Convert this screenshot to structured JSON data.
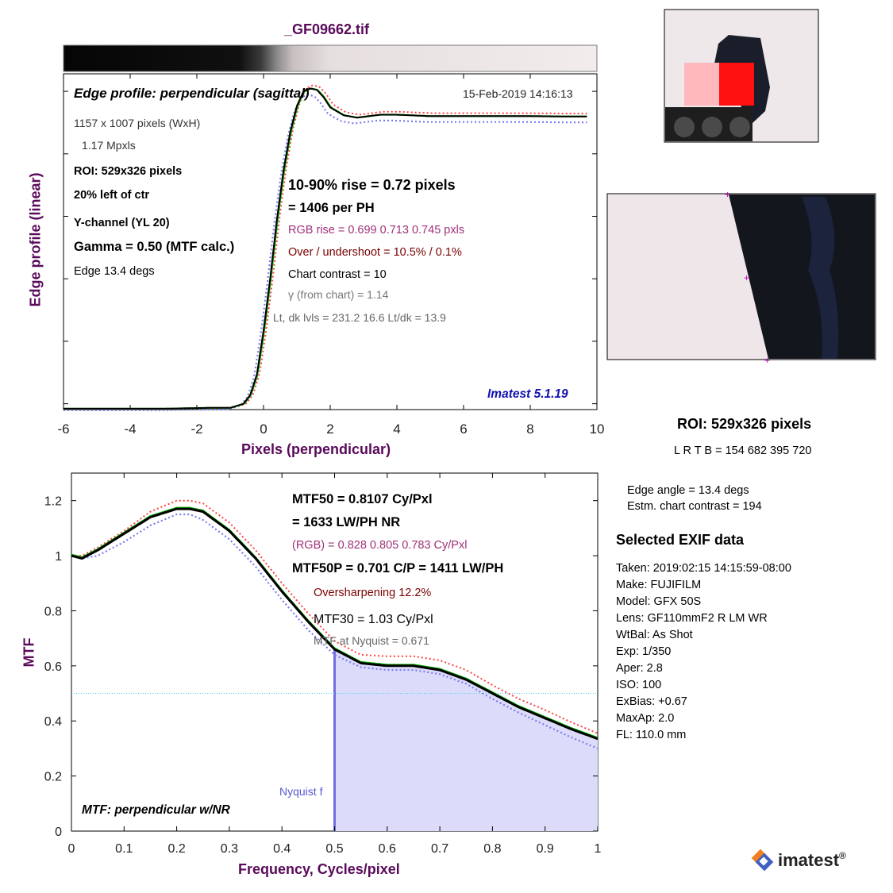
{
  "file_title": "_GF09662.tif",
  "edge_panel": {
    "title": "Edge profile: perpendicular (sagittal)",
    "timestamp": "15-Feb-2019 14:16:13",
    "info": {
      "size": "1157 x 1007 pixels (WxH)",
      "mpxls": "1.17 Mpxls",
      "roi": "ROI:  529x326 pixels",
      "location": "20% left of ctr",
      "channel": "Y-channel  (YL 20)",
      "gamma": "Gamma = 0.50 (MTF calc.)",
      "edge": "Edge   13.4 degs"
    },
    "stats": {
      "rise": "10-90% rise = 0.72 pixels",
      "per_ph": "=   1406 per PH",
      "rgb_rise": "RGB rise =  0.699   0.713   0.745 pxls",
      "overshoot": "Over / undershoot = 10.5% /  0.1%",
      "chart_contrast": "Chart contrast = 10",
      "gamma_from_chart": "γ (from chart) =  1.14",
      "levels": "Lt, dk lvls = 231.2  16.6  Lt/dk = 13.9"
    },
    "version": "Imatest 5.1.19",
    "xlabel": "Pixels (perpendicular)",
    "ylabel": "Edge profile (linear)"
  },
  "mtf_panel": {
    "mtf50": "MTF50 = 0.8107 Cy/Pxl",
    "lwph": "= 1633 LW/PH  NR",
    "rgb": "(RGB) = 0.828  0.805  0.783 Cy/Pxl",
    "mtf50p": "MTF50P = 0.701 C/P = 1411 LW/PH",
    "oversharpening": "Oversharpening 12.2%",
    "mtf30": "MTF30 = 1.03 Cy/Pxl",
    "nyquist_value": "MTF at Nyquist = 0.671",
    "nyquist_label": "Nyquist f",
    "panel_label": "MTF: perpendicular w/NR",
    "xlabel": "Frequency, Cycles/pixel",
    "ylabel": "MTF"
  },
  "roi_info": {
    "title": "ROI:  529x326 pixels",
    "lrtb": "L R  T B = 154 682  395 720",
    "edge_angle": "Edge angle = 13.4 degs",
    "chart_contrast": "Estm. chart contrast = 194"
  },
  "exif": {
    "title": "Selected EXIF data",
    "rows": [
      "Taken: 2019:02:15 14:15:59-08:00",
      "Make:  FUJIFILM",
      "Model:  GFX 50S",
      "Lens:   GF110mmF2 R LM WR",
      "WtBal: As Shot",
      "Exp:    1/350",
      "Aper:   2.8",
      "ISO:    100",
      "ExBias: +0.67",
      "MaxAp: 2.0",
      "FL:     110.0 mm"
    ]
  },
  "logo": {
    "text": "imatest",
    "mark": "®"
  },
  "colors": {
    "title_purple": "#5a0a5a",
    "magenta_text": "#a0307a",
    "darkred_text": "#7a0000",
    "version_blue": "#1010b0",
    "red_curve": "#ff4040",
    "blue_curve": "#7b7bf0",
    "green_curve": "#00b000",
    "nyquist_fill": "#dcdcfa"
  },
  "chart_data": [
    {
      "type": "line",
      "title": "Edge profile: perpendicular (sagittal)",
      "xlabel": "Pixels (perpendicular)",
      "ylabel": "Edge profile (linear)",
      "xlim": [
        -6,
        10
      ],
      "ylim": [
        0,
        1.15
      ],
      "xticks": [
        -6,
        -4,
        -2,
        0,
        2,
        4,
        6,
        8,
        10
      ],
      "grid": false,
      "series": [
        {
          "values_x": [
            -6,
            -3,
            -1.6,
            -1,
            -0.6,
            -0.4,
            -0.2,
            0,
            0.2,
            0.4,
            0.6,
            0.8,
            1,
            1.2,
            1.4,
            1.6,
            1.8,
            2,
            2.4,
            2.8,
            3.5,
            4,
            5,
            6,
            7,
            8,
            9,
            9.7
          ],
          "values_y": [
            0.003,
            0.003,
            0.006,
            0.006,
            0.02,
            0.05,
            0.12,
            0.27,
            0.45,
            0.65,
            0.82,
            0.95,
            1.04,
            1.09,
            1.1,
            1.095,
            1.07,
            1.035,
            1.008,
            1.0,
            1.01,
            1.01,
            1.005,
            1.005,
            1.005,
            1.005,
            1.004,
            1.004
          ]
        }
      ]
    },
    {
      "type": "line",
      "xlabel": "Frequency, Cycles/pixel",
      "ylabel": "MTF",
      "xlim": [
        0,
        1
      ],
      "ylim": [
        0,
        1.3
      ],
      "xticks": [
        0,
        0.1,
        0.2,
        0.3,
        0.4,
        0.5,
        0.6,
        0.7,
        0.8,
        0.9,
        1
      ],
      "yticks": [
        0,
        0.2,
        0.4,
        0.6,
        0.8,
        1,
        1.2
      ],
      "grid": false,
      "reference_line_y": 0.5,
      "nyquist_x": 0.5,
      "x": [
        0,
        0.02,
        0.05,
        0.1,
        0.15,
        0.2,
        0.225,
        0.25,
        0.3,
        0.35,
        0.4,
        0.45,
        0.5,
        0.55,
        0.6,
        0.65,
        0.7,
        0.75,
        0.8,
        0.85,
        0.9,
        0.95,
        1.0
      ],
      "series": [
        {
          "values": [
            1.0,
            0.99,
            1.02,
            1.08,
            1.14,
            1.17,
            1.17,
            1.16,
            1.09,
            0.99,
            0.87,
            0.76,
            0.66,
            0.61,
            0.6,
            0.6,
            0.585,
            0.55,
            0.5,
            0.45,
            0.41,
            0.37,
            0.335
          ]
        },
        {
          "values": [
            1.0,
            1.0,
            1.03,
            1.09,
            1.16,
            1.2,
            1.2,
            1.19,
            1.12,
            1.02,
            0.9,
            0.79,
            0.69,
            0.64,
            0.635,
            0.635,
            0.62,
            0.585,
            0.53,
            0.48,
            0.44,
            0.395,
            0.355
          ]
        },
        {
          "values": [
            1.0,
            0.99,
            1.0,
            1.05,
            1.11,
            1.15,
            1.15,
            1.13,
            1.06,
            0.96,
            0.84,
            0.73,
            0.64,
            0.595,
            0.585,
            0.585,
            0.57,
            0.535,
            0.48,
            0.43,
            0.385,
            0.34,
            0.3
          ]
        }
      ]
    }
  ]
}
